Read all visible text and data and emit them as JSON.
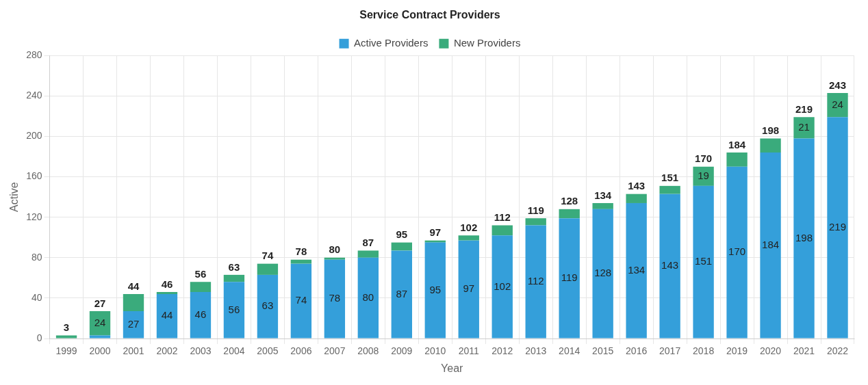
{
  "chart_data": {
    "type": "bar",
    "title": "Service Contract Providers",
    "xlabel": "Year",
    "ylabel": "Active",
    "stacked": true,
    "legend": "top",
    "grid": true,
    "categories": [
      "1999",
      "2000",
      "2001",
      "2002",
      "2003",
      "2004",
      "2005",
      "2006",
      "2007",
      "2008",
      "2009",
      "2010",
      "2011",
      "2012",
      "2013",
      "2014",
      "2015",
      "2016",
      "2017",
      "2018",
      "2019",
      "2020",
      "2021",
      "2022"
    ],
    "series": [
      {
        "name": "Active Providers",
        "color": "#349fda",
        "values": [
          0,
          3,
          27,
          44,
          46,
          56,
          63,
          74,
          78,
          80,
          87,
          95,
          97,
          102,
          112,
          119,
          128,
          134,
          143,
          151,
          170,
          184,
          198,
          219
        ],
        "value_labels": [
          null,
          null,
          "27",
          "44",
          "46",
          "56",
          "63",
          "74",
          "78",
          "80",
          "87",
          "95",
          "97",
          "102",
          "112",
          "119",
          "128",
          "134",
          "143",
          "151",
          "170",
          "184",
          "198",
          "219"
        ]
      },
      {
        "name": "New Providers",
        "color": "#3aab7c",
        "values": [
          3,
          24,
          17,
          2,
          10,
          7,
          11,
          4,
          2,
          7,
          8,
          2,
          5,
          10,
          7,
          9,
          6,
          9,
          8,
          19,
          14,
          14,
          21,
          24
        ],
        "value_labels": [
          null,
          "24",
          null,
          null,
          null,
          null,
          null,
          null,
          null,
          null,
          null,
          null,
          null,
          null,
          null,
          null,
          null,
          null,
          null,
          "19",
          null,
          null,
          "21",
          "24"
        ]
      }
    ],
    "totals": [
      "3",
      "27",
      "44",
      "46",
      "56",
      "63",
      "74",
      "78",
      "80",
      "87",
      "95",
      "97",
      "102",
      "112",
      "119",
      "128",
      "134",
      "143",
      "151",
      "170",
      "184",
      "198",
      "219",
      "243"
    ],
    "ylim": [
      0,
      280
    ],
    "yticks": [
      0,
      40,
      80,
      120,
      160,
      200,
      240,
      280
    ]
  }
}
